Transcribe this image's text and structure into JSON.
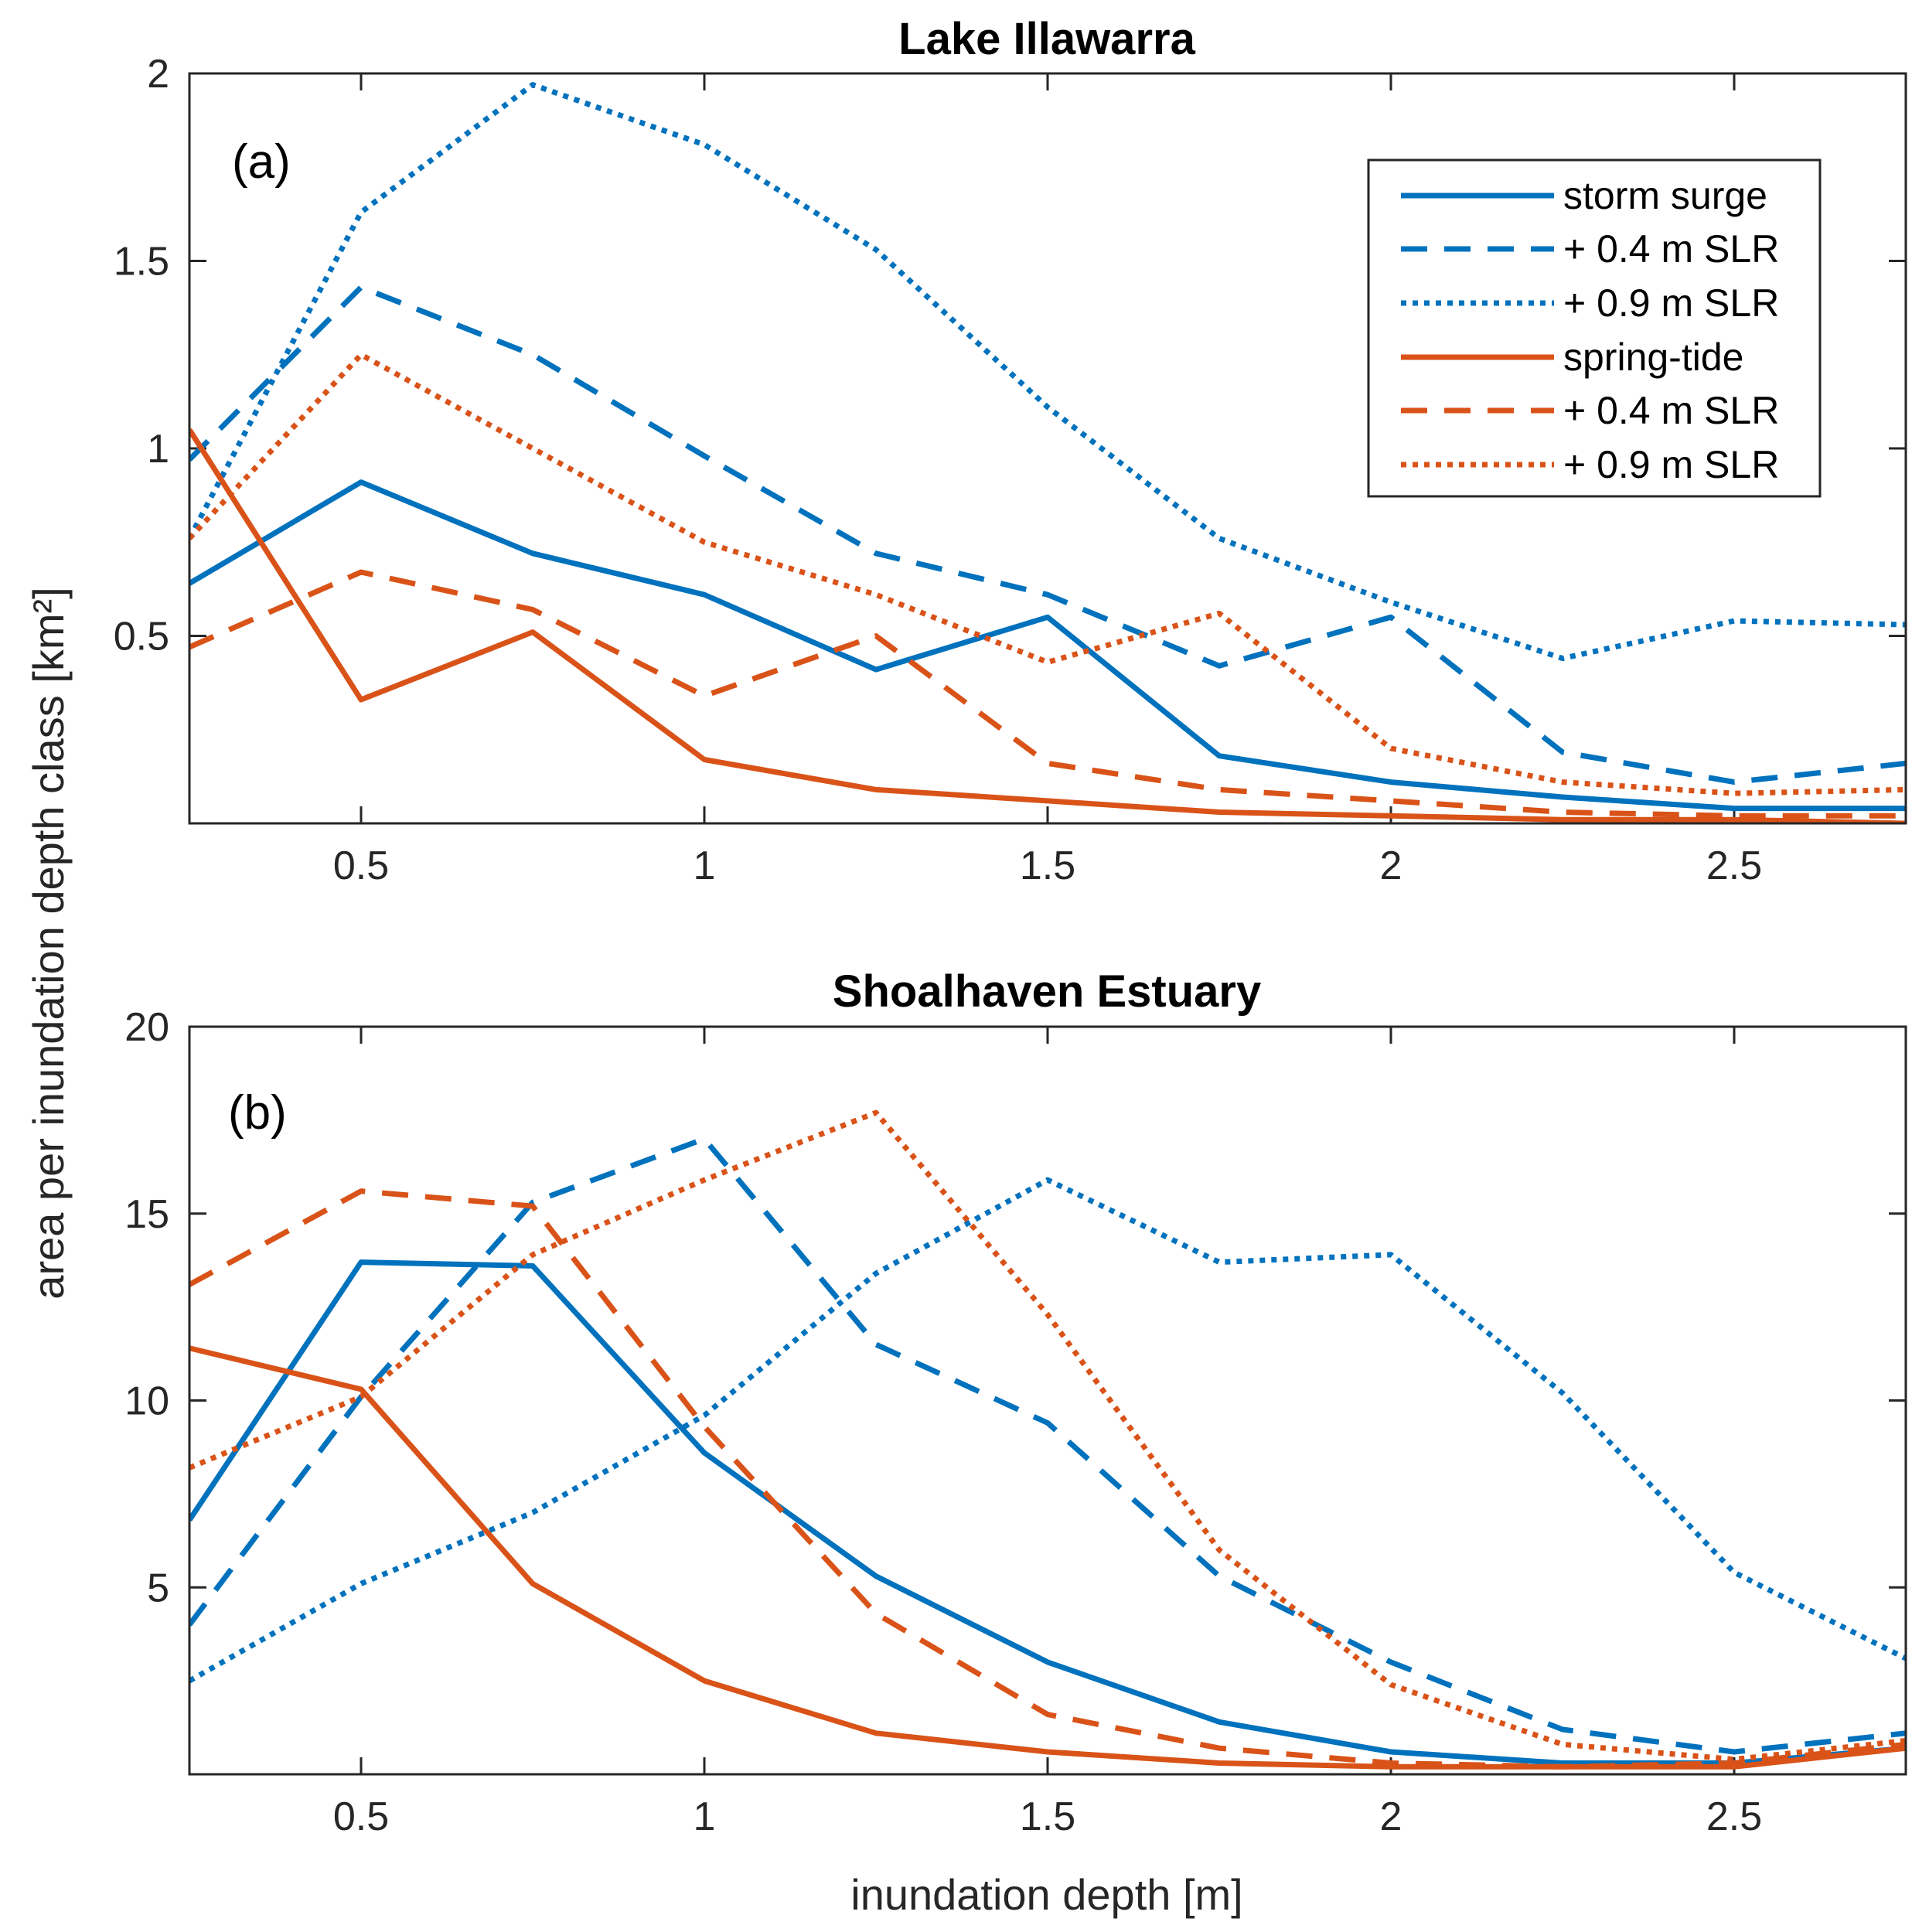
{
  "chart_data": [
    {
      "type": "line",
      "title": "Lake Illawarra",
      "panel_label": "(a)",
      "xlim": [
        0.25,
        2.75
      ],
      "ylim": [
        0,
        2
      ],
      "xticks": [
        0.5,
        1,
        1.5,
        2,
        2.5
      ],
      "xtick_labels": [
        "0.5",
        "1",
        "1.5",
        "2",
        "2.5"
      ],
      "yticks": [
        0.5,
        1,
        1.5,
        2
      ],
      "ytick_labels": [
        "0.5",
        "1",
        "1.5",
        "2"
      ],
      "legend_position": "top-right",
      "x": [
        0.25,
        0.5,
        0.75,
        1.0,
        1.25,
        1.5,
        1.75,
        2.0,
        2.25,
        2.5,
        2.75
      ],
      "series": [
        {
          "name": "storm surge",
          "color": "#0072BD",
          "style": "solid",
          "values": [
            0.64,
            0.91,
            0.72,
            0.61,
            0.41,
            0.55,
            0.18,
            0.11,
            0.07,
            0.04,
            0.04
          ]
        },
        {
          "name": "+ 0.4 m SLR",
          "color": "#0072BD",
          "style": "dashed",
          "values": [
            0.97,
            1.43,
            1.25,
            0.98,
            0.72,
            0.61,
            0.42,
            0.55,
            0.19,
            0.11,
            0.16
          ]
        },
        {
          "name": "+ 0.9 m SLR",
          "color": "#0072BD",
          "style": "dotted",
          "values": [
            0.76,
            1.63,
            1.97,
            1.81,
            1.53,
            1.11,
            0.76,
            0.59,
            0.44,
            0.54,
            0.53
          ]
        },
        {
          "name": "spring-tide",
          "color": "#D95319",
          "style": "solid",
          "values": [
            1.05,
            0.33,
            0.51,
            0.17,
            0.09,
            0.06,
            0.03,
            0.02,
            0.01,
            0.01,
            0.0
          ]
        },
        {
          "name": "+ 0.4 m SLR",
          "color": "#D95319",
          "style": "dashed",
          "values": [
            0.47,
            0.67,
            0.57,
            0.34,
            0.5,
            0.16,
            0.09,
            0.06,
            0.03,
            0.02,
            0.02
          ]
        },
        {
          "name": "+ 0.9 m SLR",
          "color": "#D95319",
          "style": "dotted",
          "values": [
            0.76,
            1.25,
            1.0,
            0.75,
            0.61,
            0.43,
            0.56,
            0.2,
            0.11,
            0.08,
            0.09
          ]
        }
      ]
    },
    {
      "type": "line",
      "title": "Shoalhaven Estuary",
      "panel_label": "(b)",
      "xlim": [
        0.25,
        2.75
      ],
      "ylim": [
        0,
        20
      ],
      "xticks": [
        0.5,
        1,
        1.5,
        2,
        2.5
      ],
      "xtick_labels": [
        "0.5",
        "1",
        "1.5",
        "2",
        "2.5"
      ],
      "yticks": [
        5,
        10,
        15,
        20
      ],
      "ytick_labels": [
        "5",
        "10",
        "15",
        "20"
      ],
      "x": [
        0.25,
        0.5,
        0.75,
        1.0,
        1.25,
        1.5,
        1.75,
        2.0,
        2.25,
        2.5,
        2.75
      ],
      "series": [
        {
          "name": "storm surge",
          "color": "#0072BD",
          "style": "solid",
          "values": [
            6.8,
            13.7,
            13.6,
            8.6,
            5.3,
            3.0,
            1.4,
            0.6,
            0.3,
            0.3,
            0.7
          ]
        },
        {
          "name": "+ 0.4 m SLR",
          "color": "#0072BD",
          "style": "dashed",
          "values": [
            4.0,
            10.1,
            15.3,
            17.0,
            11.5,
            9.4,
            5.3,
            3.0,
            1.2,
            0.6,
            1.1
          ]
        },
        {
          "name": "+ 0.9 m SLR",
          "color": "#0072BD",
          "style": "dotted",
          "values": [
            2.5,
            5.1,
            7.0,
            9.6,
            13.4,
            15.9,
            13.7,
            13.9,
            10.2,
            5.4,
            3.1
          ]
        },
        {
          "name": "spring-tide",
          "color": "#D95319",
          "style": "solid",
          "values": [
            11.4,
            10.3,
            5.1,
            2.5,
            1.1,
            0.6,
            0.3,
            0.2,
            0.2,
            0.2,
            0.7
          ]
        },
        {
          "name": "+ 0.4 m SLR",
          "color": "#D95319",
          "style": "dashed",
          "values": [
            13.1,
            15.6,
            15.2,
            9.3,
            4.3,
            1.6,
            0.7,
            0.3,
            0.2,
            0.3,
            0.8
          ]
        },
        {
          "name": "+ 0.9 m SLR",
          "color": "#D95319",
          "style": "dotted",
          "values": [
            8.2,
            10.1,
            13.9,
            15.9,
            17.7,
            12.3,
            6.0,
            2.4,
            0.8,
            0.4,
            0.9
          ]
        }
      ]
    }
  ],
  "labels": {
    "ylabel": "area per inundation depth class [km²]",
    "xlabel": "inundation depth [m]"
  }
}
